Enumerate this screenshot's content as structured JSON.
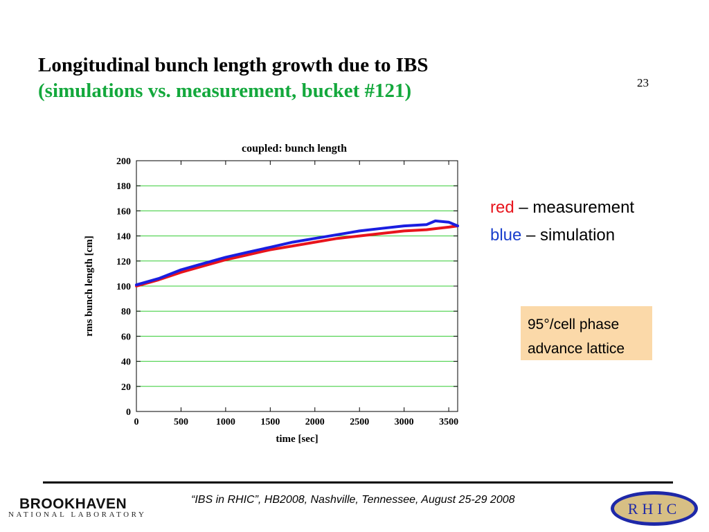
{
  "slide": {
    "title_line1": "Longitudinal bunch length growth due to IBS",
    "title_line2": "(simulations vs. measurement, bucket #121)",
    "slide_number": "23",
    "title_line2_color": "#13a83c"
  },
  "legend": {
    "red_word": "red",
    "red_rest": " – measurement",
    "blue_word": "blue",
    "blue_rest": " – simulation"
  },
  "note": {
    "line1": "95°/cell phase",
    "line2": "advance lattice",
    "background": "#fbd9a9"
  },
  "footer": {
    "citation": "“IBS in RHIC”, HB2008, Nashville, Tennessee, August 25-29  2008",
    "left_logo_main": "BROOKHAVEN",
    "left_logo_sub": "NATIONAL LABORATORY",
    "right_logo_text": "RHIC"
  },
  "chart_data": {
    "type": "line",
    "title": "coupled: bunch length",
    "xlabel": "time [sec]",
    "ylabel": "rms bunch length [cm]",
    "xlim": [
      0,
      3600
    ],
    "ylim": [
      0,
      200
    ],
    "xticks": [
      0,
      500,
      1000,
      1500,
      2000,
      2500,
      3000,
      3500
    ],
    "yticks": [
      0,
      20,
      40,
      60,
      80,
      100,
      120,
      140,
      160,
      180,
      200
    ],
    "grid": "horizontal",
    "grid_color": "#33cc33",
    "series": [
      {
        "name": "red – measurement",
        "color": "#e8141c",
        "x": [
          0,
          250,
          500,
          750,
          1000,
          1250,
          1500,
          1750,
          2000,
          2250,
          2500,
          2750,
          3000,
          3250,
          3500,
          3600
        ],
        "y": [
          100,
          105,
          111,
          116,
          121,
          125,
          129,
          132,
          135,
          138,
          140,
          142,
          144,
          145,
          147,
          148
        ]
      },
      {
        "name": "blue – simulation",
        "color": "#1a1ee0",
        "x": [
          0,
          250,
          500,
          750,
          1000,
          1250,
          1500,
          1750,
          2000,
          2250,
          2500,
          2750,
          3000,
          3250,
          3350,
          3500,
          3600
        ],
        "y": [
          101,
          106,
          113,
          118,
          123,
          127,
          131,
          135,
          138,
          141,
          144,
          146,
          148,
          149,
          152,
          151,
          148
        ]
      }
    ]
  }
}
